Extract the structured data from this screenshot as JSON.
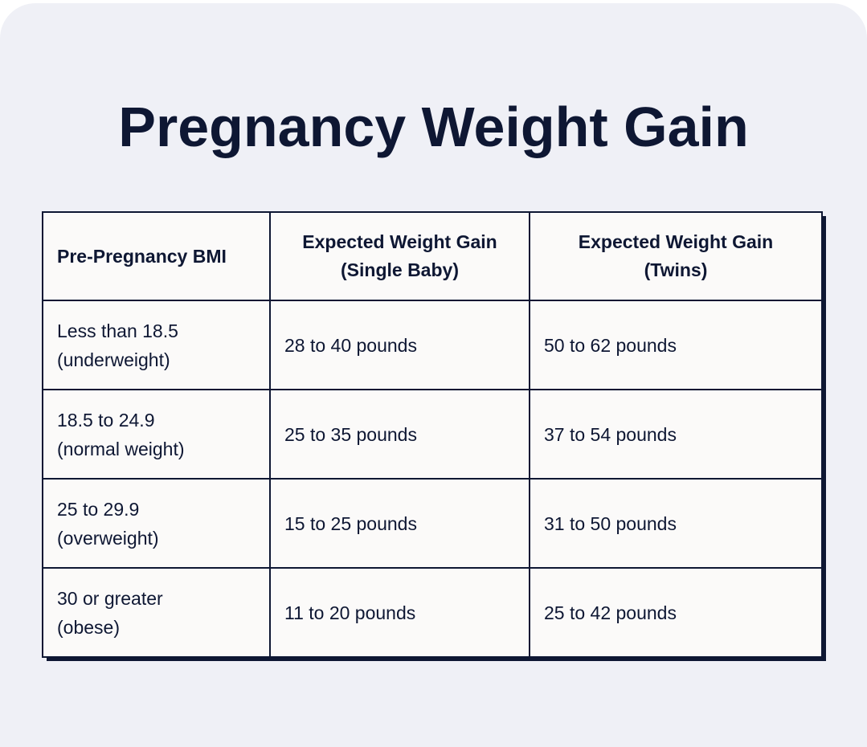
{
  "title": "Pregnancy Weight Gain",
  "table": {
    "headers": [
      [
        "Pre-Pregnancy BMI"
      ],
      [
        "Expected Weight Gain",
        "(Single Baby)"
      ],
      [
        "Expected Weight Gain",
        "(Twins)"
      ]
    ],
    "rows": [
      {
        "bmi": [
          "Less than 18.5",
          "(underweight)"
        ],
        "single": "28 to 40 pounds",
        "twins": "50 to 62 pounds"
      },
      {
        "bmi": [
          "18.5 to 24.9",
          "(normal weight)"
        ],
        "single": "25 to 35 pounds",
        "twins": "37 to 54 pounds"
      },
      {
        "bmi": [
          "25 to 29.9",
          "(overweight)"
        ],
        "single": "15 to 25 pounds",
        "twins": "31 to 50 pounds"
      },
      {
        "bmi": [
          "30 or greater",
          "(obese)"
        ],
        "single": "11 to 20 pounds",
        "twins": "25 to 42 pounds"
      }
    ]
  }
}
